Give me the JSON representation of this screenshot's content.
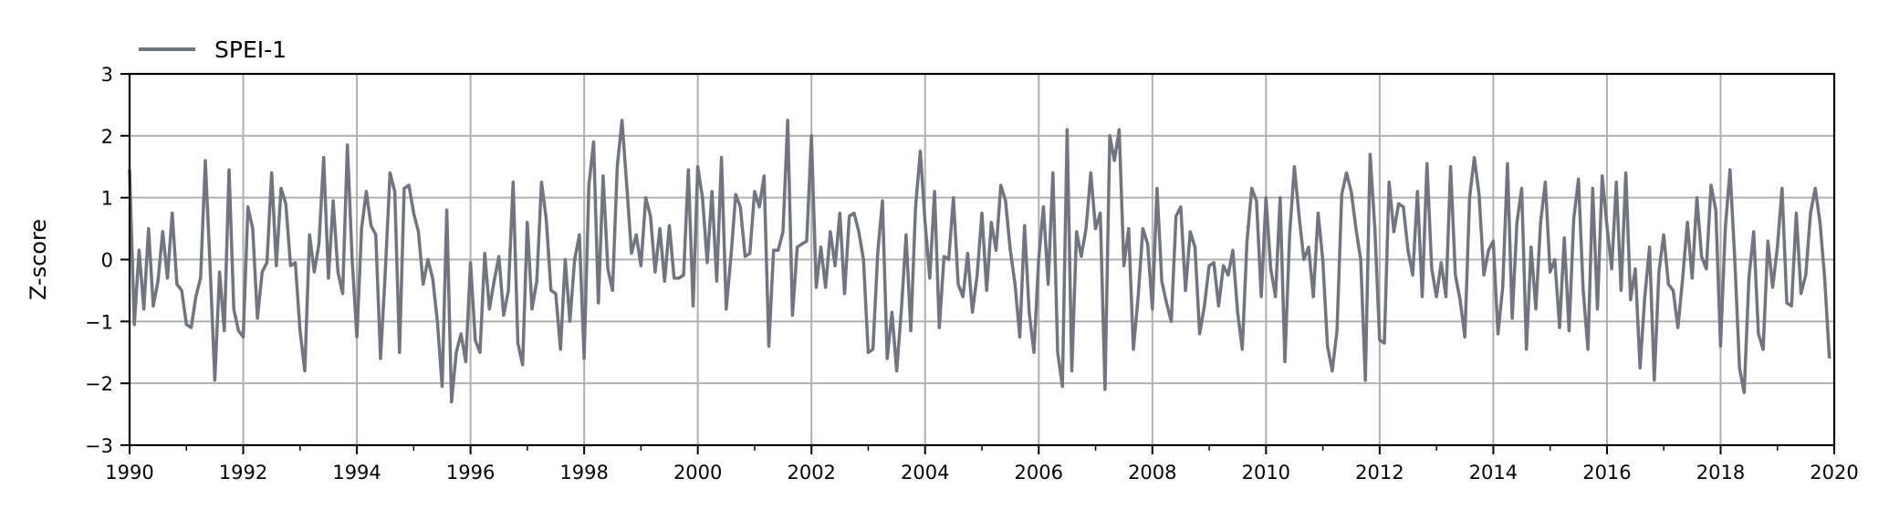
{
  "chart_data": {
    "type": "line",
    "title": "",
    "xlabel": "",
    "ylabel": "Z-score",
    "xlim": [
      1990,
      2020
    ],
    "ylim": [
      -3,
      3
    ],
    "x_ticks": [
      "1990",
      "1992",
      "1994",
      "1996",
      "1998",
      "2000",
      "2002",
      "2004",
      "2006",
      "2008",
      "2010",
      "2012",
      "2014",
      "2016",
      "2018",
      "2020"
    ],
    "y_ticks": [
      "−3",
      "−2",
      "−1",
      "0",
      "1",
      "2",
      "3"
    ],
    "grid": true,
    "legend_position": "top-left",
    "line_color": "#72757f",
    "series": [
      {
        "name": "SPEI-1",
        "x_start": 1990.0,
        "x_step": 0.08333,
        "values": [
          1.45,
          -1.05,
          0.15,
          -0.8,
          0.5,
          -0.75,
          -0.35,
          0.45,
          -0.3,
          0.75,
          -0.4,
          -0.5,
          -1.05,
          -1.1,
          -0.6,
          -0.3,
          1.6,
          -0.1,
          -1.95,
          -0.2,
          -1.15,
          1.45,
          -0.8,
          -1.15,
          -1.25,
          0.85,
          0.5,
          -0.95,
          -0.2,
          -0.05,
          1.4,
          -0.1,
          1.15,
          0.9,
          -0.1,
          -0.05,
          -1.15,
          -1.8,
          0.4,
          -0.2,
          0.25,
          1.65,
          -0.3,
          0.95,
          -0.2,
          -0.55,
          1.85,
          0.0,
          -1.25,
          0.5,
          1.1,
          0.55,
          0.4,
          -1.6,
          -0.2,
          1.4,
          1.1,
          -1.5,
          1.15,
          1.2,
          0.75,
          0.45,
          -0.4,
          0.0,
          -0.3,
          -1.0,
          -2.05,
          0.8,
          -2.3,
          -1.5,
          -1.2,
          -1.65,
          -0.05,
          -1.3,
          -1.5,
          0.1,
          -0.8,
          -0.35,
          0.05,
          -0.9,
          -0.5,
          1.25,
          -1.35,
          -1.7,
          0.6,
          -0.8,
          -0.35,
          1.25,
          0.65,
          -0.5,
          -0.55,
          -1.45,
          0.0,
          -1.0,
          0.0,
          0.4,
          -1.6,
          1.2,
          1.9,
          -0.7,
          1.35,
          -0.15,
          -0.5,
          1.5,
          2.25,
          1.2,
          0.1,
          0.4,
          -0.1,
          1.0,
          0.7,
          -0.2,
          0.5,
          -0.35,
          0.55,
          -0.3,
          -0.3,
          -0.25,
          1.45,
          -0.75,
          1.5,
          1.0,
          -0.05,
          1.1,
          -0.35,
          1.65,
          -0.8,
          0.05,
          1.05,
          0.85,
          0.05,
          0.1,
          1.1,
          0.85,
          1.35,
          -1.4,
          0.15,
          0.15,
          0.45,
          2.25,
          -0.9,
          0.2,
          0.25,
          0.3,
          2.0,
          -0.45,
          0.2,
          -0.45,
          0.45,
          -0.1,
          0.75,
          -0.55,
          0.7,
          0.75,
          0.45,
          0.0,
          -1.5,
          -1.45,
          0.1,
          0.95,
          -1.6,
          -0.85,
          -1.8,
          -0.8,
          0.4,
          -1.15,
          0.85,
          1.75,
          0.6,
          -0.3,
          1.1,
          -1.1,
          0.05,
          0.0,
          1.0,
          -0.4,
          -0.6,
          0.1,
          -0.85,
          -0.25,
          0.75,
          -0.5,
          0.6,
          0.15,
          1.2,
          0.95,
          0.15,
          -0.4,
          -1.25,
          0.55,
          -0.85,
          -1.5,
          0.0,
          0.85,
          -0.4,
          1.4,
          -1.5,
          -2.05,
          2.1,
          -1.8,
          0.45,
          0.05,
          0.5,
          1.4,
          0.5,
          0.75,
          -2.1,
          2.0,
          1.6,
          2.1,
          -0.1,
          0.5,
          -1.45,
          -0.6,
          0.5,
          0.25,
          -0.8,
          1.15,
          -0.35,
          -0.7,
          -1.0,
          0.7,
          0.85,
          -0.5,
          0.45,
          0.2,
          -1.2,
          -0.75,
          -0.1,
          -0.05,
          -0.75,
          -0.1,
          -0.25,
          0.15,
          -0.85,
          -1.45,
          0.3,
          1.15,
          0.95,
          -0.6,
          1.0,
          -0.15,
          -0.6,
          1.0,
          -1.65,
          0.4,
          1.5,
          0.7,
          0.0,
          0.2,
          -0.6,
          0.75,
          0.0,
          -1.4,
          -1.8,
          -1.15,
          1.05,
          1.4,
          1.1,
          0.5,
          0.0,
          -1.95,
          1.7,
          0.5,
          -1.3,
          -1.35,
          1.25,
          0.45,
          0.9,
          0.85,
          0.15,
          -0.25,
          1.1,
          -0.6,
          1.55,
          -0.15,
          -0.6,
          -0.05,
          -0.6,
          1.5,
          -0.25,
          -0.65,
          -1.25,
          1.0,
          1.65,
          1.05,
          -0.25,
          0.15,
          0.3,
          -1.2,
          -0.45,
          1.55,
          -0.95,
          0.6,
          1.15,
          -1.45,
          0.2,
          -0.8,
          0.6,
          1.25,
          -0.2,
          0.0,
          -1.1,
          0.35,
          -1.15,
          0.65,
          1.3,
          -0.5,
          -1.45,
          1.15,
          -0.8,
          1.35,
          0.55,
          -0.15,
          1.25,
          -0.5,
          1.4,
          -0.65,
          -0.15,
          -1.75,
          -0.6,
          0.2,
          -1.95,
          -0.2,
          0.4,
          -0.4,
          -0.5,
          -1.1,
          -0.3,
          0.6,
          -0.3,
          1.0,
          0.05,
          -0.15,
          1.2,
          0.8,
          -1.4,
          0.5,
          1.45,
          0.0,
          -1.75,
          -2.15,
          -0.3,
          0.45,
          -1.2,
          -1.45,
          0.3,
          -0.45,
          0.2,
          1.15,
          -0.7,
          -0.75,
          0.75,
          -0.55,
          -0.25,
          0.75,
          1.15,
          0.6,
          -0.3,
          -1.6
        ]
      }
    ]
  }
}
